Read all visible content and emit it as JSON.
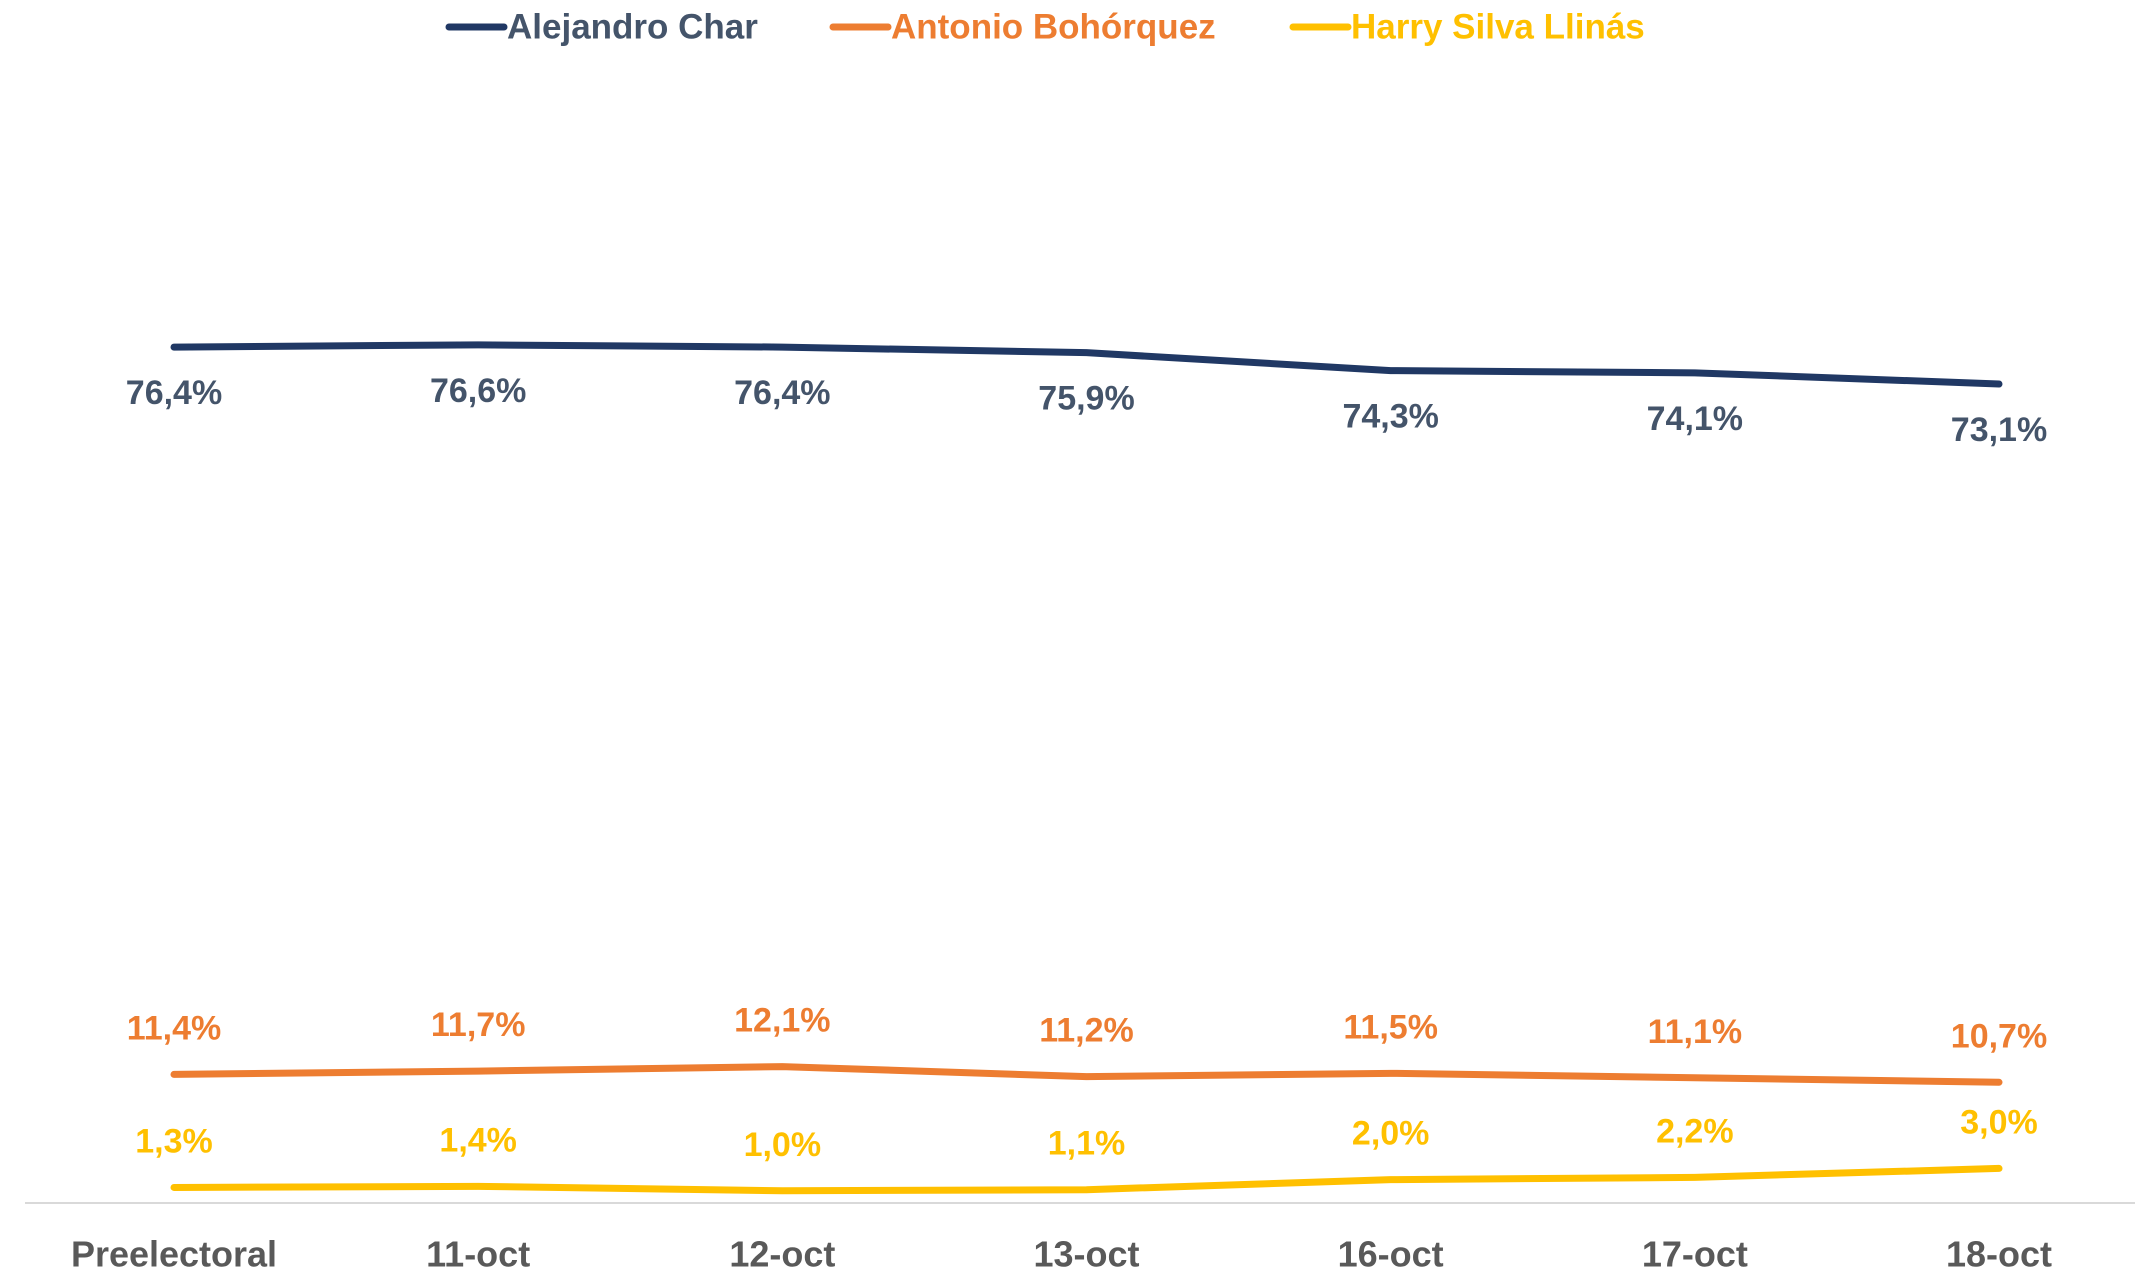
{
  "chart_data": {
    "type": "line",
    "categories": [
      "Preelectoral",
      "11-oct",
      "12-oct",
      "13-oct",
      "16-oct",
      "17-oct",
      "18-oct"
    ],
    "series": [
      {
        "name": "Alejandro Char",
        "color": "#203864",
        "values": [
          76.4,
          76.6,
          76.4,
          75.9,
          74.3,
          74.1,
          73.1
        ],
        "value_labels": [
          "76,4%",
          "76,6%",
          "76,4%",
          "75,9%",
          "74,3%",
          "74,1%",
          "73,1%"
        ]
      },
      {
        "name": "Antonio Bohórquez",
        "color": "#ed7d31",
        "values": [
          11.4,
          11.7,
          12.1,
          11.2,
          11.5,
          11.1,
          10.7
        ],
        "value_labels": [
          "11,4%",
          "11,7%",
          "12,1%",
          "11,2%",
          "11,5%",
          "11,1%",
          "10,7%"
        ]
      },
      {
        "name": "Harry Silva Llinás",
        "color": "#ffc000",
        "values": [
          1.3,
          1.4,
          1.0,
          1.1,
          2.0,
          2.2,
          3.0
        ],
        "value_labels": [
          "1,3%",
          "1,4%",
          "1,0%",
          "1,1%",
          "2,0%",
          "2,2%",
          "3,0%"
        ]
      }
    ],
    "ylim": [
      0,
      100
    ],
    "grid": false,
    "legend": "top"
  }
}
